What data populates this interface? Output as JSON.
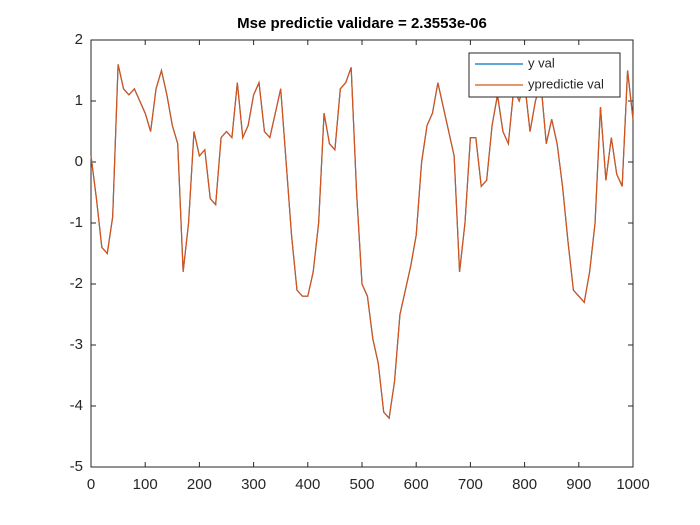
{
  "chart_data": {
    "type": "line",
    "title": "Mse predictie validare = 2.3553e-06",
    "x": [
      0,
      10,
      20,
      30,
      40,
      50,
      60,
      70,
      80,
      90,
      100,
      110,
      120,
      130,
      140,
      150,
      160,
      170,
      180,
      190,
      200,
      210,
      220,
      230,
      240,
      250,
      260,
      270,
      280,
      290,
      300,
      310,
      320,
      330,
      340,
      350,
      360,
      370,
      380,
      390,
      400,
      410,
      420,
      430,
      440,
      450,
      460,
      470,
      480,
      490,
      500,
      510,
      520,
      530,
      540,
      550,
      560,
      570,
      580,
      590,
      600,
      610,
      620,
      630,
      640,
      650,
      660,
      670,
      680,
      690,
      700,
      710,
      720,
      730,
      740,
      750,
      760,
      770,
      780,
      790,
      800,
      810,
      820,
      830,
      840,
      850,
      860,
      870,
      880,
      890,
      900,
      910,
      920,
      930,
      940,
      950,
      960,
      970,
      980,
      990,
      1000
    ],
    "series": [
      {
        "name": "y val",
        "color": "#0072bd",
        "values": [
          0.1,
          -0.6,
          -1.4,
          -1.5,
          -0.9,
          1.6,
          1.2,
          1.1,
          1.2,
          1.0,
          0.8,
          0.5,
          1.2,
          1.5,
          1.1,
          0.6,
          0.3,
          -1.8,
          -1.0,
          0.5,
          0.1,
          0.2,
          -0.6,
          -0.7,
          0.4,
          0.5,
          0.4,
          1.3,
          0.4,
          0.6,
          1.1,
          1.3,
          0.5,
          0.4,
          0.8,
          1.2,
          0.0,
          -1.2,
          -2.1,
          -2.2,
          -2.2,
          -1.8,
          -1.0,
          0.8,
          0.3,
          0.2,
          1.2,
          1.3,
          1.55,
          -0.5,
          -2.0,
          -2.2,
          -2.9,
          -3.3,
          -4.1,
          -4.2,
          -3.6,
          -2.5,
          -2.1,
          -1.7,
          -1.2,
          0.0,
          0.6,
          0.8,
          1.3,
          0.9,
          0.5,
          0.1,
          -1.8,
          -1.0,
          0.4,
          0.4,
          -0.4,
          -0.3,
          0.6,
          1.1,
          0.5,
          0.3,
          1.2,
          1.0,
          1.3,
          0.5,
          1.0,
          1.3,
          0.3,
          0.7,
          0.3,
          -0.4,
          -1.3,
          -2.1,
          -2.2,
          -2.3,
          -1.8,
          -1.0,
          0.9,
          -0.3,
          0.4,
          -0.2,
          -0.4,
          1.5,
          0.7
        ]
      },
      {
        "name": "ypredictie val",
        "color": "#d95319",
        "values": [
          0.1,
          -0.6,
          -1.4,
          -1.5,
          -0.9,
          1.6,
          1.2,
          1.1,
          1.2,
          1.0,
          0.8,
          0.5,
          1.2,
          1.5,
          1.1,
          0.6,
          0.3,
          -1.8,
          -1.0,
          0.5,
          0.1,
          0.2,
          -0.6,
          -0.7,
          0.4,
          0.5,
          0.4,
          1.3,
          0.4,
          0.6,
          1.1,
          1.3,
          0.5,
          0.4,
          0.8,
          1.2,
          0.0,
          -1.2,
          -2.1,
          -2.2,
          -2.2,
          -1.8,
          -1.0,
          0.8,
          0.3,
          0.2,
          1.2,
          1.3,
          1.55,
          -0.5,
          -2.0,
          -2.2,
          -2.9,
          -3.3,
          -4.1,
          -4.2,
          -3.6,
          -2.5,
          -2.1,
          -1.7,
          -1.2,
          0.0,
          0.6,
          0.8,
          1.3,
          0.9,
          0.5,
          0.1,
          -1.8,
          -1.0,
          0.4,
          0.4,
          -0.4,
          -0.3,
          0.6,
          1.1,
          0.5,
          0.3,
          1.2,
          1.0,
          1.3,
          0.5,
          1.0,
          1.3,
          0.3,
          0.7,
          0.3,
          -0.4,
          -1.3,
          -2.1,
          -2.2,
          -2.3,
          -1.8,
          -1.0,
          0.9,
          -0.3,
          0.4,
          -0.2,
          -0.4,
          1.5,
          0.7
        ]
      }
    ],
    "xlim": [
      0,
      1000
    ],
    "xticks": [
      0,
      100,
      200,
      300,
      400,
      500,
      600,
      700,
      800,
      900,
      1000
    ],
    "ylim": [
      -5,
      2
    ],
    "yticks": [
      -5,
      -4,
      -3,
      -2,
      -1,
      0,
      1,
      2
    ],
    "legend": "northeast"
  }
}
